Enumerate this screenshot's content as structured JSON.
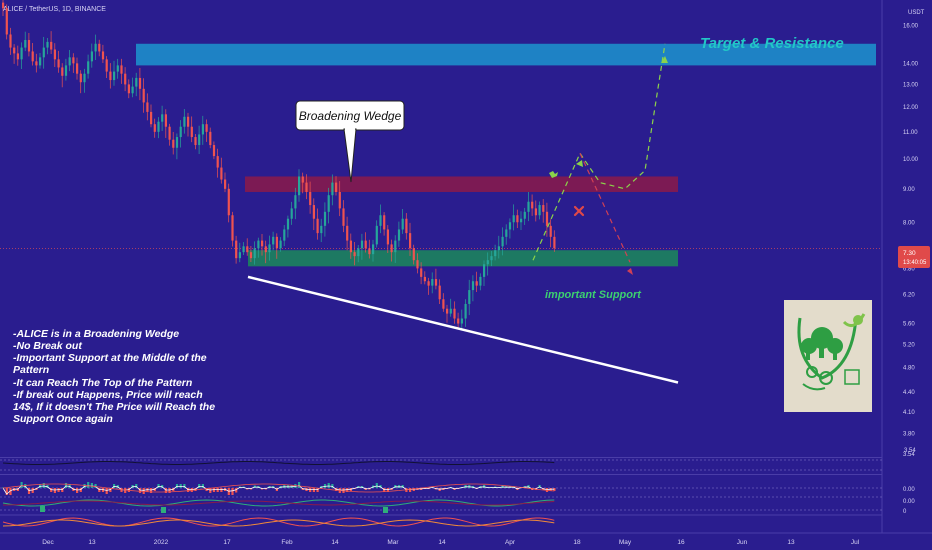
{
  "header": {
    "symbol": "ALICE / TetherUS, 1D, BINANCE",
    "currency": "USDT"
  },
  "price_axis": {
    "ticks": [
      "16.00",
      "14.00",
      "13.00",
      "12.00",
      "11.00",
      "10.00",
      "9.00",
      "8.00",
      "7.00",
      "6.80",
      "6.20",
      "5.60",
      "5.20",
      "4.80",
      "4.40",
      "4.10",
      "3.80",
      "3.54"
    ],
    "current_price": "7.30",
    "countdown": "13:40:05"
  },
  "time_axis": {
    "ticks": [
      "Dec",
      "13",
      "2022",
      "17",
      "Feb",
      "14",
      "Mar",
      "14",
      "Apr",
      "18",
      "May",
      "16",
      "Jun",
      "13",
      "Jul"
    ]
  },
  "annotations": {
    "target": "Target & Resistance",
    "wedge": "Broadening Wedge",
    "support": "important Support"
  },
  "notes": [
    "-ALICE is in a Broadening Wedge",
    "-No Break out",
    "-Important Support at the Middle of the",
    "Pattern",
    "-It can Reach The Top of the Pattern",
    "-If break out Happens, Price will reach",
    "14$, If it doesn't The Price will Reach the",
    "Support Once again"
  ],
  "indicator_axis": [
    "0.00",
    "0.00",
    "0"
  ],
  "colors": {
    "background": "#2a1d8f",
    "up": "#26a69a",
    "down": "#ef5350",
    "target_zone": "#1e88c8",
    "resistance_zone": "#8b1a4a",
    "support_zone": "#1b8a5a",
    "annotation_text": "#22c7c7",
    "support_text": "#3cd070"
  },
  "chart_data": {
    "type": "candlestick",
    "symbol": "ALICE / TetherUS",
    "interval": "1D",
    "exchange": "BINANCE",
    "scale": "log",
    "ylim": [
      3.5,
      17.5
    ],
    "current_price": 7.3,
    "zones": [
      {
        "label": "Target & Resistance",
        "low": 13.9,
        "high": 15.0
      },
      {
        "label": "",
        "low": 8.9,
        "high": 9.4
      },
      {
        "label": "important Support",
        "low": 6.85,
        "high": 7.25
      }
    ],
    "closes": [
      17,
      15.5,
      14.8,
      14.5,
      14.2,
      14.8,
      15.2,
      14.6,
      14.1,
      13.9,
      14.3,
      14.8,
      15.1,
      14.7,
      14.2,
      13.8,
      13.4,
      13.9,
      14.3,
      14.0,
      13.5,
      13.1,
      13.5,
      14.1,
      14.6,
      15.0,
      14.6,
      14.2,
      13.6,
      13.2,
      13.6,
      13.9,
      13.5,
      13.0,
      12.6,
      12.9,
      13.3,
      12.8,
      12.2,
      11.8,
      11.3,
      11.0,
      11.4,
      11.7,
      11.2,
      10.7,
      10.4,
      10.8,
      11.2,
      11.6,
      11.2,
      10.8,
      10.5,
      10.9,
      11.3,
      11.0,
      10.5,
      10.1,
      9.7,
      9.3,
      9.0,
      8.2,
      7.5,
      7.05,
      7.2,
      7.35,
      7.2,
      7.05,
      7.3,
      7.5,
      7.35,
      7.2,
      7.4,
      7.6,
      7.3,
      7.5,
      7.8,
      8.1,
      8.4,
      8.8,
      9.4,
      9.2,
      8.9,
      8.5,
      8.1,
      7.7,
      7.9,
      8.3,
      8.8,
      9.2,
      8.9,
      8.4,
      7.9,
      7.5,
      7.2,
      7.1,
      7.3,
      7.5,
      7.3,
      7.15,
      7.4,
      7.9,
      8.2,
      7.8,
      7.4,
      7.2,
      7.5,
      7.8,
      8.1,
      7.7,
      7.3,
      7.0,
      6.8,
      6.6,
      6.5,
      6.4,
      6.55,
      6.4,
      6.1,
      5.9,
      5.8,
      5.9,
      5.7,
      5.6,
      5.7,
      6.0,
      6.3,
      6.5,
      6.4,
      6.6,
      6.9,
      7.0,
      7.1,
      7.25,
      7.35,
      7.6,
      7.8,
      8.0,
      8.2,
      8.0,
      8.1,
      8.3,
      8.6,
      8.4,
      8.2,
      8.5,
      8.3,
      7.9,
      7.6,
      7.3
    ],
    "projection_up": [
      [
        533,
        7.0
      ],
      [
        580,
        10.2
      ],
      [
        600,
        9.2
      ],
      [
        625,
        9.0
      ],
      [
        645,
        9.6
      ],
      [
        665,
        15.0
      ]
    ],
    "projection_down": [
      [
        580,
        10.2
      ],
      [
        630,
        6.95
      ]
    ],
    "wedge_lower": [
      [
        248,
        6.6
      ],
      [
        678,
        4.55
      ]
    ],
    "notes_box": true
  }
}
